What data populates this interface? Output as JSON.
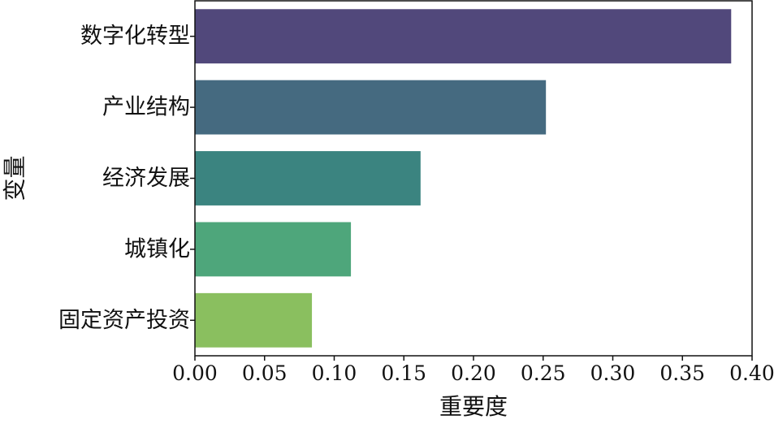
{
  "chart_data": {
    "type": "bar",
    "orientation": "horizontal",
    "categories": [
      "数字化转型",
      "产业结构",
      "经济发展",
      "城镇化",
      "固定资产投资"
    ],
    "values": [
      0.385,
      0.252,
      0.162,
      0.112,
      0.084
    ],
    "bar_colors": [
      "#51487b",
      "#456a80",
      "#3b8480",
      "#4ea67b",
      "#8abf5f"
    ],
    "xlabel": "重要度",
    "ylabel": "变量",
    "xlim": [
      0,
      0.4
    ],
    "xticks": [
      "0.00",
      "0.05",
      "0.10",
      "0.15",
      "0.20",
      "0.25",
      "0.30",
      "0.35",
      "0.40"
    ],
    "grid": false,
    "legend": "none"
  }
}
